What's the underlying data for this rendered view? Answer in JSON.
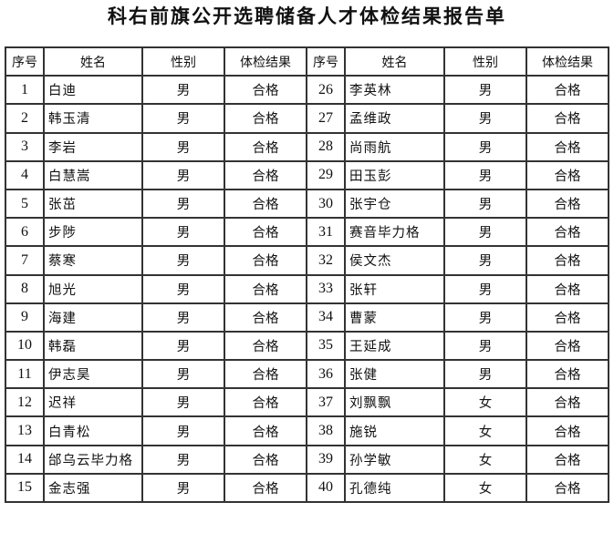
{
  "title": "科右前旗公开选聘储备人才体检结果报告单",
  "headers": [
    "序号",
    "姓名",
    "性别",
    "体检结果",
    "序号",
    "姓名",
    "性别",
    "体检结果"
  ],
  "left_rows": [
    {
      "no": "1",
      "name": "白迪",
      "gender": "男",
      "result": "合格"
    },
    {
      "no": "2",
      "name": "韩玉清",
      "gender": "男",
      "result": "合格"
    },
    {
      "no": "3",
      "name": "李岩",
      "gender": "男",
      "result": "合格"
    },
    {
      "no": "4",
      "name": "白慧嵩",
      "gender": "男",
      "result": "合格"
    },
    {
      "no": "5",
      "name": "张茁",
      "gender": "男",
      "result": "合格"
    },
    {
      "no": "6",
      "name": "步陟",
      "gender": "男",
      "result": "合格"
    },
    {
      "no": "7",
      "name": "蔡寒",
      "gender": "男",
      "result": "合格"
    },
    {
      "no": "8",
      "name": "旭光",
      "gender": "男",
      "result": "合格"
    },
    {
      "no": "9",
      "name": "海建",
      "gender": "男",
      "result": "合格"
    },
    {
      "no": "10",
      "name": "韩磊",
      "gender": "男",
      "result": "合格"
    },
    {
      "no": "11",
      "name": "伊志昊",
      "gender": "男",
      "result": "合格"
    },
    {
      "no": "12",
      "name": "迟祥",
      "gender": "男",
      "result": "合格"
    },
    {
      "no": "13",
      "name": "白青松",
      "gender": "男",
      "result": "合格"
    },
    {
      "no": "14",
      "name": "邰乌云毕力格",
      "gender": "男",
      "result": "合格"
    },
    {
      "no": "15",
      "name": "金志强",
      "gender": "男",
      "result": "合格"
    }
  ],
  "right_rows": [
    {
      "no": "26",
      "name": "李英林",
      "gender": "男",
      "result": "合格"
    },
    {
      "no": "27",
      "name": "孟维政",
      "gender": "男",
      "result": "合格"
    },
    {
      "no": "28",
      "name": "尚雨航",
      "gender": "男",
      "result": "合格"
    },
    {
      "no": "29",
      "name": "田玉彭",
      "gender": "男",
      "result": "合格"
    },
    {
      "no": "30",
      "name": "张宇仓",
      "gender": "男",
      "result": "合格"
    },
    {
      "no": "31",
      "name": "赛音毕力格",
      "gender": "男",
      "result": "合格"
    },
    {
      "no": "32",
      "name": "侯文杰",
      "gender": "男",
      "result": "合格"
    },
    {
      "no": "33",
      "name": "张轩",
      "gender": "男",
      "result": "合格"
    },
    {
      "no": "34",
      "name": "曹蒙",
      "gender": "男",
      "result": "合格"
    },
    {
      "no": "35",
      "name": "王延成",
      "gender": "男",
      "result": "合格"
    },
    {
      "no": "36",
      "name": "张健",
      "gender": "男",
      "result": "合格"
    },
    {
      "no": "37",
      "name": "刘飘飘",
      "gender": "女",
      "result": "合格"
    },
    {
      "no": "38",
      "name": "施锐",
      "gender": "女",
      "result": "合格"
    },
    {
      "no": "39",
      "name": "孙学敏",
      "gender": "女",
      "result": "合格"
    },
    {
      "no": "40",
      "name": "孔德纯",
      "gender": "女",
      "result": "合格"
    }
  ]
}
